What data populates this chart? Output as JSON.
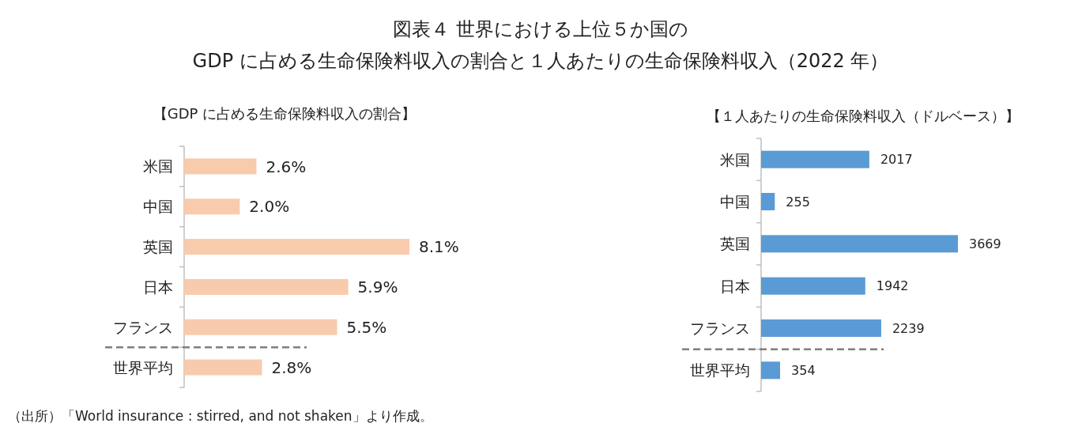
{
  "chart_data": [
    {
      "type": "bar",
      "orientation": "horizontal",
      "title": "図表４ 世界における上位５か国の\nGDP に占める生命保険料収入の割合と１人あたりの生命保険料収入（2022 年）",
      "subtitle": "【GDP に占める生命保険料収入の割合】",
      "categories": [
        "米国",
        "中国",
        "英国",
        "日本",
        "フランス",
        "世界平均"
      ],
      "series": [
        {
          "color": "#f8cbad",
          "values": [
            2.6,
            2.0,
            8.1,
            5.9,
            5.5,
            2.8
          ],
          "value_labels": [
            "2.6%",
            "2.0%",
            "8.1%",
            "5.9%",
            "5.5%",
            "2.8%"
          ]
        }
      ],
      "annotations": [
        "（出所）「World insurance : stirred, and not shaken」より作成。"
      ]
    },
    {
      "type": "bar",
      "orientation": "horizontal",
      "subtitle": "【１人あたりの生命保険料収入（ドルベース）】",
      "categories": [
        "米国",
        "中国",
        "英国",
        "日本",
        "フランス",
        "世界平均"
      ],
      "series": [
        {
          "color": "#5b9bd5",
          "values": [
            2017,
            255,
            3669,
            1942,
            2239,
            354
          ]
        }
      ],
      "data_labels": true
    }
  ]
}
